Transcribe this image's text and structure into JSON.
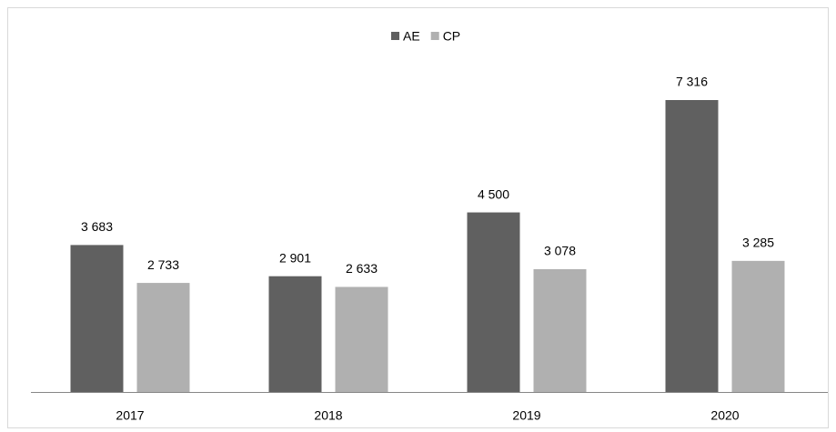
{
  "chart_data": {
    "type": "bar",
    "categories": [
      "2017",
      "2018",
      "2019",
      "2020"
    ],
    "series": [
      {
        "name": "AE",
        "color": "#606060",
        "values": [
          3683,
          2901,
          4500,
          7316
        ],
        "value_labels": [
          "3 683",
          "2 901",
          "4 500",
          "7 316"
        ]
      },
      {
        "name": "CP",
        "color": "#b0b0b0",
        "values": [
          2733,
          2633,
          3078,
          3285
        ],
        "value_labels": [
          "2 733",
          "2 633",
          "3 078",
          "3 285"
        ]
      }
    ],
    "legend": "top"
  }
}
